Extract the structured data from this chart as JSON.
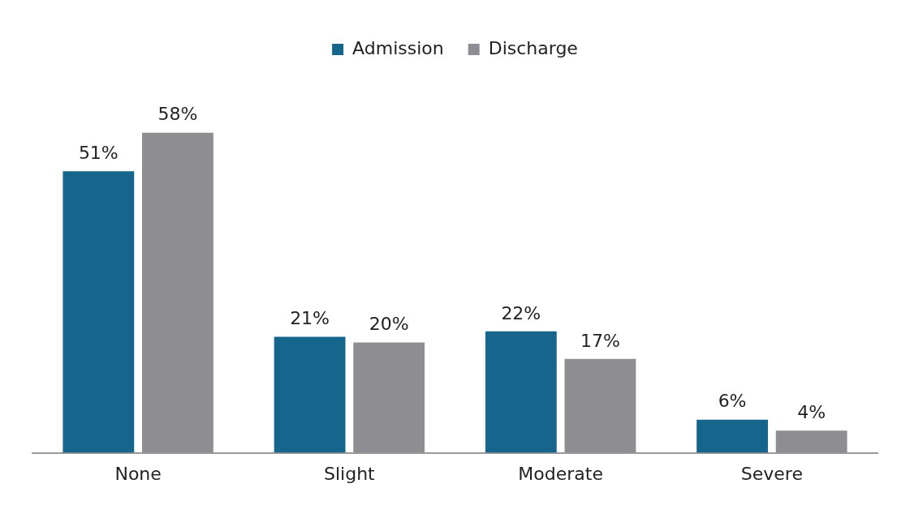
{
  "chart_data": {
    "type": "bar",
    "categories": [
      "None",
      "Slight",
      "Moderate",
      "Severe"
    ],
    "series": [
      {
        "name": "Admission",
        "color": "#16658c",
        "values": [
          51,
          21,
          22,
          6
        ],
        "value_labels": [
          "51%",
          "21%",
          "22%",
          "6%"
        ]
      },
      {
        "name": "Discharge",
        "color": "#8e8e92",
        "values": [
          58,
          20,
          17,
          4
        ],
        "value_labels": [
          "58%",
          "20%",
          "17%",
          "4%"
        ]
      }
    ],
    "legend": "top"
  }
}
